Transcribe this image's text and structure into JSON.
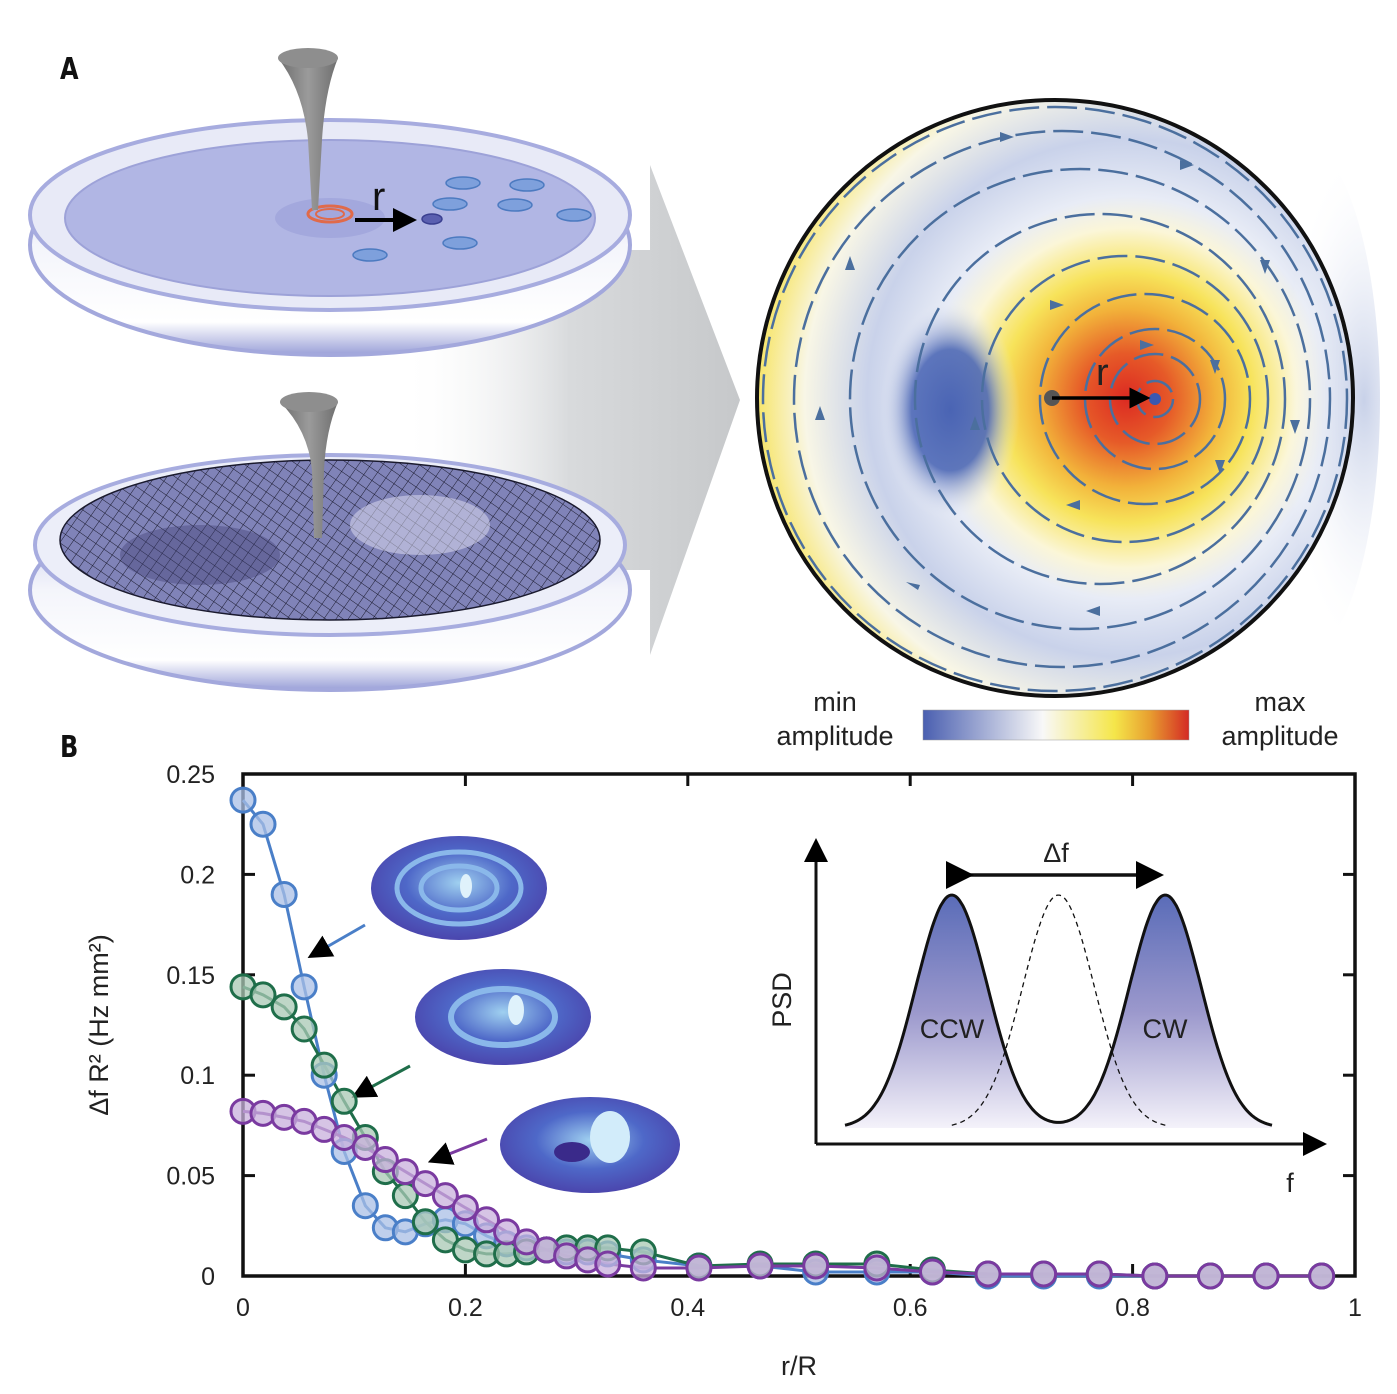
{
  "panels": {
    "a_label": "A",
    "b_label": "B"
  },
  "panel_a": {
    "top_dish_radius_label": "r",
    "heatmap_radius_label": "r",
    "colorbar": {
      "min_label_line1": "min",
      "min_label_line2": "amplitude",
      "max_label_line1": "max",
      "max_label_line2": "amplitude",
      "colors": [
        "#4a5fb0",
        "#ffffff",
        "#f5e64a",
        "#e8a030",
        "#d42a24"
      ]
    },
    "heatmap_colors": {
      "min": "#4a64b4",
      "mid": "#f7f9fc",
      "yellow": "#f7e35a",
      "orange": "#ee9a2a",
      "max": "#dc2a22",
      "streamline": "#4b6f9e"
    }
  },
  "chart_data": [
    {
      "type": "line",
      "title": "",
      "xlabel": "r/R",
      "ylabel": "Δf R² (Hz mm²)",
      "xlim": [
        0,
        1
      ],
      "ylim": [
        0,
        0.25
      ],
      "xticks": [
        0,
        0.2,
        0.4,
        0.6,
        0.8,
        1
      ],
      "xtick_labels": [
        "0",
        "0.2",
        "0.4",
        "0.6",
        "0.8",
        "1"
      ],
      "yticks": [
        0,
        0.05,
        0.1,
        0.15,
        0.2,
        0.25
      ],
      "ytick_labels": [
        "0",
        "0.05",
        "0.1",
        "0.15",
        "0.2",
        "0.25"
      ],
      "grid": false,
      "legend": "none (arrows point to mode-shape insets)",
      "series": [
        {
          "name": "mode-3-rings",
          "color": "#4a7fc8",
          "fill": "#aabfe6",
          "x": [
            0,
            0.018,
            0.037,
            0.055,
            0.073,
            0.091,
            0.11,
            0.128,
            0.146,
            0.164,
            0.182,
            0.2,
            0.219,
            0.237,
            0.255,
            0.273,
            0.291,
            0.31,
            0.328,
            0.36,
            0.41,
            0.465,
            0.515,
            0.57,
            0.62,
            0.67,
            0.72,
            0.77,
            0.82,
            0.87,
            0.92,
            0.97
          ],
          "y": [
            0.237,
            0.225,
            0.19,
            0.144,
            0.1,
            0.062,
            0.035,
            0.024,
            0.022,
            0.026,
            0.028,
            0.026,
            0.02,
            0.016,
            0.014,
            0.013,
            0.012,
            0.012,
            0.011,
            0.008,
            0.005,
            0.005,
            0.002,
            0.002,
            0.002,
            0.0,
            0.0,
            0.0,
            0.0,
            0.0,
            0.0,
            0.0
          ]
        },
        {
          "name": "mode-2-rings",
          "color": "#1f6e4a",
          "fill": "#a8c8b4",
          "x": [
            0,
            0.018,
            0.037,
            0.055,
            0.073,
            0.091,
            0.11,
            0.128,
            0.146,
            0.164,
            0.182,
            0.2,
            0.219,
            0.237,
            0.255,
            0.273,
            0.291,
            0.31,
            0.328,
            0.36,
            0.41,
            0.465,
            0.515,
            0.57,
            0.62,
            0.67,
            0.72,
            0.77,
            0.82,
            0.87,
            0.92,
            0.97
          ],
          "y": [
            0.144,
            0.14,
            0.134,
            0.123,
            0.105,
            0.087,
            0.069,
            0.052,
            0.04,
            0.027,
            0.018,
            0.013,
            0.011,
            0.011,
            0.012,
            0.013,
            0.014,
            0.014,
            0.014,
            0.012,
            0.005,
            0.006,
            0.006,
            0.006,
            0.003,
            0.001,
            0.001,
            0.001,
            0.0,
            0.0,
            0.0,
            0.0
          ]
        },
        {
          "name": "mode-1-ring",
          "color": "#7a3aa0",
          "fill": "#c8b0dc",
          "x": [
            0,
            0.018,
            0.037,
            0.055,
            0.073,
            0.091,
            0.11,
            0.128,
            0.146,
            0.164,
            0.182,
            0.2,
            0.219,
            0.237,
            0.255,
            0.273,
            0.291,
            0.31,
            0.328,
            0.36,
            0.41,
            0.465,
            0.515,
            0.57,
            0.62,
            0.67,
            0.72,
            0.77,
            0.82,
            0.87,
            0.92,
            0.97
          ],
          "y": [
            0.082,
            0.081,
            0.079,
            0.077,
            0.073,
            0.069,
            0.064,
            0.058,
            0.052,
            0.046,
            0.04,
            0.034,
            0.028,
            0.022,
            0.017,
            0.013,
            0.01,
            0.008,
            0.006,
            0.004,
            0.004,
            0.005,
            0.005,
            0.004,
            0.002,
            0.001,
            0.001,
            0.001,
            0.0,
            0.0,
            0.0,
            0.0
          ]
        }
      ]
    },
    {
      "type": "line",
      "title": "inset schematic",
      "xlabel": "f",
      "ylabel": "PSD",
      "annotation": "Δf",
      "peak_labels": [
        "CCW",
        "CW"
      ],
      "series": [
        {
          "name": "split-peaks",
          "style": "solid",
          "peaks_at": [
            -1,
            1
          ],
          "fill": "#5a6cb8"
        },
        {
          "name": "degenerate-peak",
          "style": "dashed",
          "peaks_at": [
            0
          ]
        }
      ]
    }
  ]
}
